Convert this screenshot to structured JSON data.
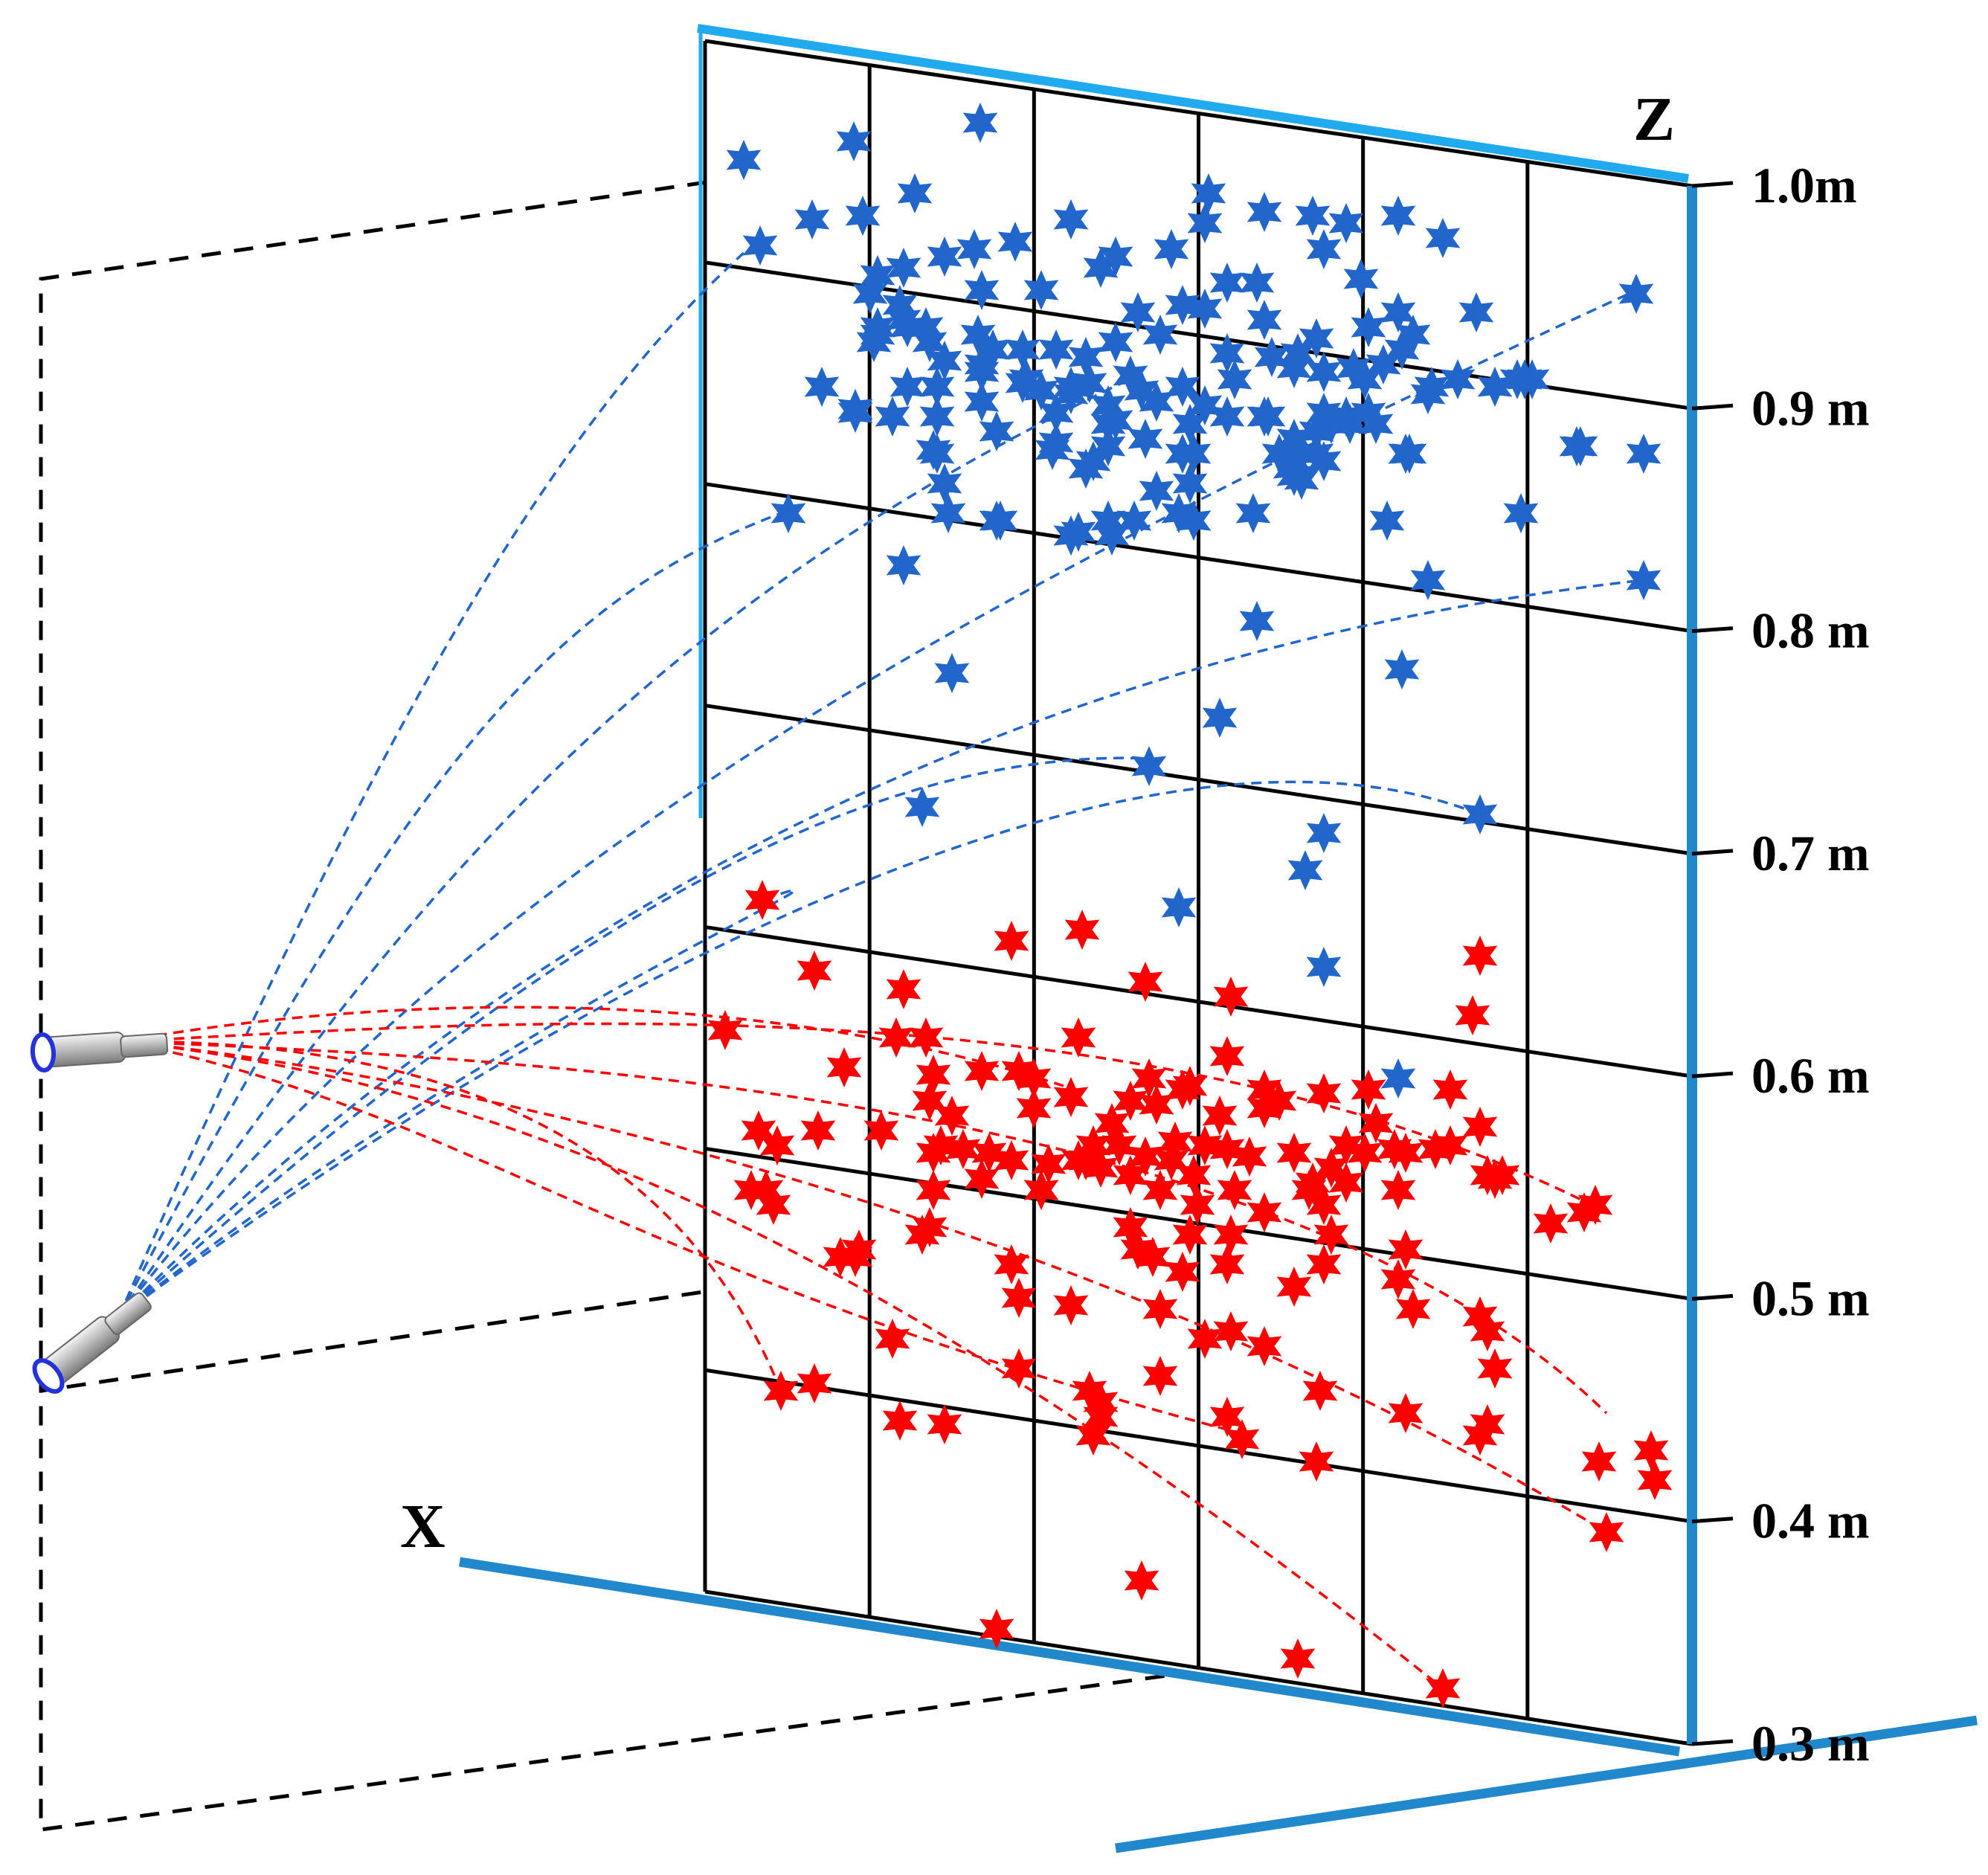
{
  "axes": {
    "x_label": "X",
    "z_label": "Z"
  },
  "height_labels": [
    "1.0m",
    "0.9 m",
    "0.8 m",
    "0.7 m",
    "0.6 m",
    "0.5 m",
    "0.4 m",
    "0.3 m"
  ],
  "colors": {
    "upper_nozzle_droplets": "#2266cc",
    "lower_nozzle_droplets": "#ff0000",
    "axis_lines": "#2288cc",
    "wall_top": "#22aaee",
    "grid": "#000000"
  },
  "legend_icons": [
    "upper-nozzle-icon",
    "lower-nozzle-icon"
  ]
}
